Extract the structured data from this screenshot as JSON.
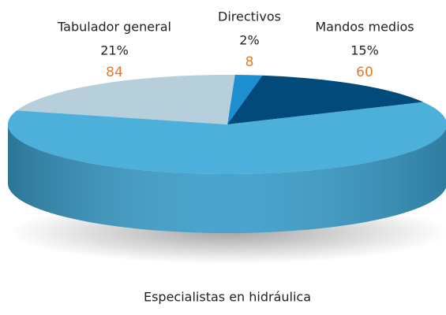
{
  "chart_data": {
    "type": "pie",
    "categories": [
      "Directivos",
      "Mandos medios",
      "Especialistas en hidráulica",
      "Tabulador general"
    ],
    "values": [
      2,
      15,
      62,
      21
    ],
    "value_labels": [
      "2%",
      "15%",
      "62%",
      "21%"
    ],
    "counts": [
      8,
      60,
      null,
      84
    ],
    "colors": [
      "#1b8fd0",
      "#014a7a",
      "#4db0da",
      "#b6cfdb"
    ],
    "side_colors": [
      "#137ab5",
      "#013a60",
      "#3a9dca",
      "#94b3c2"
    ]
  }
}
